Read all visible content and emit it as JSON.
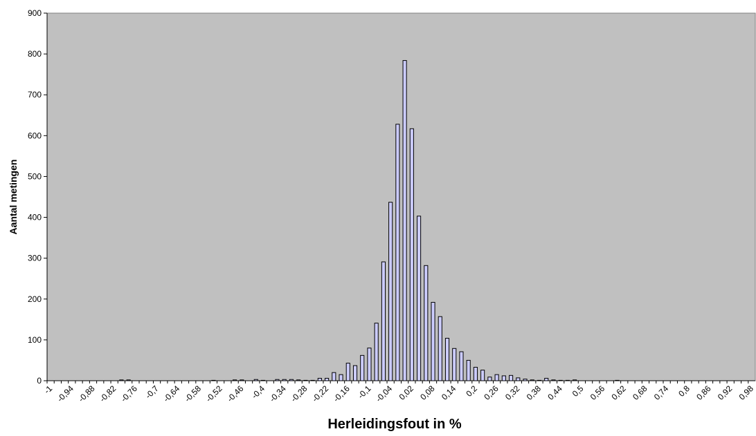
{
  "chart_data": {
    "type": "bar",
    "x_label": "Herleidingsfout  in %",
    "y_label": "Aantal metingen",
    "categories": [
      "-1",
      null,
      null,
      "-0,94",
      null,
      null,
      "-0,88",
      null,
      null,
      "-0,82",
      null,
      null,
      "-0,76",
      null,
      null,
      "-0,7",
      null,
      null,
      "-0,64",
      null,
      null,
      "-0,58",
      null,
      null,
      "-0,52",
      null,
      null,
      "-0,46",
      null,
      null,
      "-0,4",
      null,
      null,
      "-0,34",
      null,
      null,
      "-0,28",
      null,
      null,
      "-0,22",
      null,
      null,
      "-0,16",
      null,
      null,
      "-0,1",
      null,
      null,
      "-0,04",
      null,
      null,
      "0,02",
      null,
      null,
      "0,08",
      null,
      null,
      "0,14",
      null,
      null,
      "0,2",
      null,
      null,
      "0,26",
      null,
      null,
      "0,32",
      null,
      null,
      "0,38",
      null,
      null,
      "0,44",
      null,
      null,
      "0,5",
      null,
      null,
      "0,56",
      null,
      null,
      "0,62",
      null,
      null,
      "0,68",
      null,
      null,
      "0,74",
      null,
      null,
      "0,8",
      null,
      null,
      "0,86",
      null,
      null,
      "0,92",
      null,
      null,
      "0,98"
    ],
    "values": [
      0,
      0,
      0,
      0,
      0,
      0,
      0,
      0,
      0,
      0,
      2,
      2,
      0,
      0,
      0,
      0,
      0,
      0,
      0,
      0,
      0,
      0,
      0,
      1,
      0,
      0,
      2,
      2,
      0,
      3,
      1,
      0,
      3,
      3,
      3,
      2,
      1,
      1,
      6,
      6,
      20,
      15,
      43,
      37,
      62,
      80,
      141,
      291,
      437,
      628,
      784,
      617,
      403,
      282,
      192,
      157,
      104,
      79,
      71,
      50,
      33,
      26,
      9,
      15,
      12,
      13,
      7,
      4,
      2,
      1,
      6,
      2,
      1,
      1,
      2,
      0,
      0,
      0,
      0,
      0,
      1,
      0,
      0,
      0,
      0,
      0,
      0,
      0,
      0,
      0,
      0,
      0,
      0,
      0,
      0,
      0,
      0,
      0,
      0,
      0
    ],
    "color": "#ccccff",
    "ylim": [
      0,
      900
    ],
    "yticks": [
      0,
      100,
      200,
      300,
      400,
      500,
      600,
      700,
      800,
      900
    ],
    "background": "#c0c0c0"
  }
}
